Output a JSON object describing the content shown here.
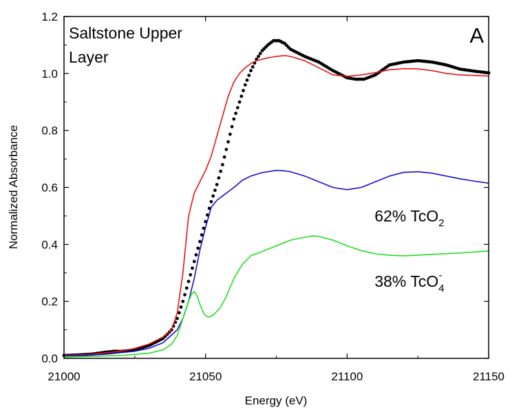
{
  "chart_data": {
    "type": "line",
    "title": "Saltstone Upper Layer",
    "title_lines": [
      "Saltstone Upper",
      "Layer"
    ],
    "panel_label": "A",
    "xlabel": "Energy (eV)",
    "ylabel": "Normalized Absorbance",
    "xlim": [
      21000,
      21150
    ],
    "ylim": [
      0.0,
      1.2
    ],
    "xticks": [
      21000,
      21050,
      21100,
      21150
    ],
    "yticks": [
      0.0,
      0.2,
      0.4,
      0.6,
      0.8,
      1.0,
      1.2
    ],
    "grid": false,
    "annotations": [
      {
        "prefix": "62% TcO",
        "subscript": "2",
        "superscript": "",
        "x": 21122,
        "y": 0.5
      },
      {
        "prefix": "38% TcO",
        "subscript": "4",
        "superscript": "-",
        "x": 21122,
        "y": 0.27
      }
    ],
    "series": [
      {
        "style": "dots",
        "color": "#000000",
        "x": [
          21000,
          21005,
          21010,
          21015,
          21018,
          21020,
          21025,
          21030,
          21035,
          21038,
          21040,
          21042,
          21044,
          21046,
          21048,
          21050,
          21052,
          21054,
          21056,
          21058,
          21060,
          21062,
          21064,
          21066,
          21068,
          21070,
          21072,
          21074,
          21076,
          21078,
          21080,
          21085,
          21090,
          21095,
          21100,
          21103,
          21106,
          21110,
          21115,
          21120,
          21125,
          21130,
          21135,
          21140,
          21145,
          21150
        ],
        "values": [
          0.01,
          0.012,
          0.015,
          0.022,
          0.025,
          0.024,
          0.03,
          0.045,
          0.07,
          0.1,
          0.14,
          0.2,
          0.27,
          0.34,
          0.41,
          0.48,
          0.55,
          0.61,
          0.68,
          0.76,
          0.84,
          0.9,
          0.96,
          1.01,
          1.05,
          1.08,
          1.1,
          1.115,
          1.115,
          1.105,
          1.085,
          1.06,
          1.04,
          1.01,
          0.985,
          0.98,
          0.98,
          0.995,
          1.03,
          1.04,
          1.045,
          1.04,
          1.03,
          1.015,
          1.008,
          1.002
        ]
      },
      {
        "style": "line",
        "color": "#e81010",
        "x": [
          21000,
          21005,
          21010,
          21015,
          21020,
          21025,
          21030,
          21035,
          21038,
          21040,
          21042,
          21044,
          21046,
          21048,
          21050,
          21052,
          21054,
          21056,
          21058,
          21060,
          21062,
          21064,
          21066,
          21068,
          21070,
          21072,
          21075,
          21078,
          21080,
          21085,
          21090,
          21095,
          21100,
          21105,
          21110,
          21115,
          21120,
          21125,
          21130,
          21135,
          21140,
          21145,
          21150
        ],
        "values": [
          0.01,
          0.012,
          0.015,
          0.02,
          0.025,
          0.035,
          0.05,
          0.075,
          0.1,
          0.16,
          0.3,
          0.5,
          0.58,
          0.62,
          0.66,
          0.71,
          0.78,
          0.85,
          0.92,
          0.97,
          1.0,
          1.02,
          1.035,
          1.045,
          1.05,
          1.055,
          1.06,
          1.063,
          1.06,
          1.045,
          1.02,
          0.995,
          0.99,
          0.995,
          1.003,
          1.013,
          1.017,
          1.016,
          1.01,
          1.0,
          0.995,
          0.993,
          0.991
        ]
      },
      {
        "style": "line",
        "color": "#1010cc",
        "x": [
          21000,
          21005,
          21010,
          21015,
          21020,
          21025,
          21030,
          21035,
          21040,
          21042,
          21044,
          21046,
          21048,
          21050,
          21052,
          21054,
          21056,
          21058,
          21060,
          21063,
          21066,
          21070,
          21075,
          21078,
          21080,
          21085,
          21090,
          21095,
          21100,
          21105,
          21110,
          21115,
          21120,
          21125,
          21130,
          21135,
          21140,
          21145,
          21150
        ],
        "values": [
          0.008,
          0.01,
          0.012,
          0.015,
          0.02,
          0.025,
          0.035,
          0.055,
          0.1,
          0.14,
          0.2,
          0.28,
          0.38,
          0.46,
          0.53,
          0.555,
          0.57,
          0.585,
          0.6,
          0.625,
          0.64,
          0.652,
          0.66,
          0.658,
          0.655,
          0.64,
          0.62,
          0.6,
          0.592,
          0.6,
          0.62,
          0.64,
          0.653,
          0.655,
          0.65,
          0.64,
          0.63,
          0.622,
          0.615
        ]
      },
      {
        "style": "line",
        "color": "#22dd22",
        "x": [
          21000,
          21010,
          21020,
          21030,
          21035,
          21038,
          21040,
          21042,
          21044,
          21045,
          21046,
          21047,
          21048,
          21049,
          21050,
          21051,
          21052,
          21053,
          21055,
          21057,
          21060,
          21063,
          21066,
          21070,
          21075,
          21080,
          21085,
          21088,
          21090,
          21095,
          21100,
          21105,
          21110,
          21115,
          21120,
          21125,
          21130,
          21140,
          21150
        ],
        "values": [
          0.005,
          0.007,
          0.01,
          0.018,
          0.03,
          0.05,
          0.08,
          0.14,
          0.2,
          0.225,
          0.235,
          0.22,
          0.19,
          0.165,
          0.15,
          0.145,
          0.148,
          0.155,
          0.175,
          0.21,
          0.28,
          0.33,
          0.36,
          0.375,
          0.395,
          0.415,
          0.425,
          0.43,
          0.428,
          0.415,
          0.395,
          0.378,
          0.367,
          0.362,
          0.36,
          0.362,
          0.365,
          0.37,
          0.377
        ]
      }
    ]
  }
}
